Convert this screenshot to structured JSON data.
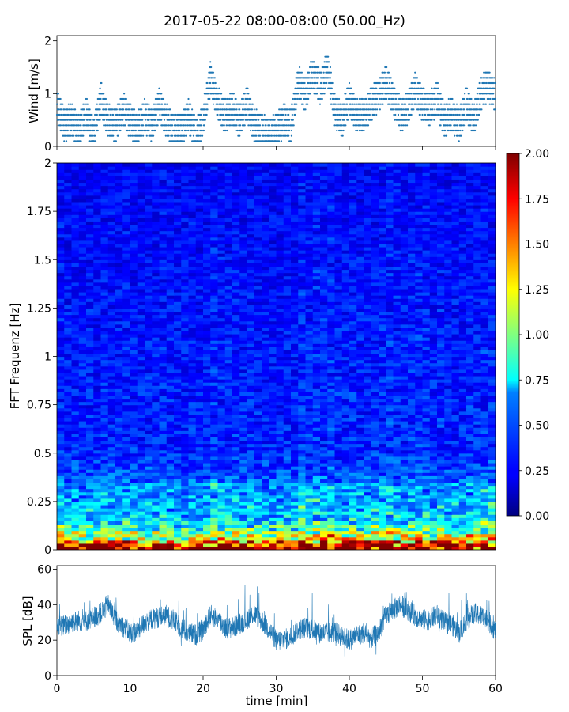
{
  "chart_data": [
    {
      "type": "scatter",
      "title": "2017-05-22 08:00-08:00 (50.00_Hz)",
      "xlabel": "",
      "ylabel": "Wind [m/s]",
      "xlim": [
        0,
        60
      ],
      "ylim": [
        0,
        2.1
      ],
      "yticks": [
        0,
        1,
        2
      ],
      "marker_color": "#1f77b4",
      "x": [
        0,
        1,
        2,
        3,
        4,
        5,
        6,
        7,
        8,
        9,
        10,
        11,
        12,
        13,
        14,
        15,
        16,
        17,
        18,
        19,
        20,
        21,
        22,
        23,
        24,
        25,
        26,
        27,
        28,
        29,
        30,
        31,
        32,
        33,
        34,
        35,
        36,
        37,
        38,
        39,
        40,
        41,
        42,
        43,
        44,
        45,
        46,
        47,
        48,
        49,
        50,
        51,
        52,
        53,
        54,
        55,
        56,
        57,
        58,
        59,
        60
      ],
      "y": [
        0.8,
        0.4,
        0.5,
        0.3,
        0.6,
        0.2,
        0.9,
        0.5,
        0.4,
        0.7,
        0.5,
        0.3,
        0.6,
        0.4,
        0.8,
        0.5,
        0.3,
        0.3,
        0.6,
        0.2,
        0.5,
        1.3,
        0.8,
        0.6,
        0.7,
        0.5,
        0.8,
        0.4,
        0.3,
        0.2,
        0.3,
        0.5,
        0.4,
        1.2,
        1.0,
        1.4,
        1.1,
        1.5,
        0.7,
        0.5,
        0.9,
        0.6,
        0.6,
        0.8,
        1.0,
        1.2,
        0.9,
        0.6,
        0.7,
        1.1,
        0.8,
        0.7,
        0.9,
        0.5,
        0.6,
        0.4,
        0.8,
        0.5,
        1.0,
        1.2,
        0.9
      ]
    },
    {
      "type": "heatmap",
      "xlabel": "",
      "ylabel": "FFT Frequenz [Hz]",
      "xlim": [
        0,
        60
      ],
      "ylim": [
        0,
        2
      ],
      "yticks": [
        0,
        0.25,
        0.5,
        0.75,
        1,
        1.25,
        1.5,
        1.75,
        2
      ],
      "colorbar": {
        "range": [
          0,
          2
        ],
        "ticks": [
          "0.00",
          "0.25",
          "0.50",
          "0.75",
          "1.00",
          "1.25",
          "1.50",
          "1.75",
          "2.00"
        ],
        "colormap": "jet"
      },
      "energy_profile": [
        {
          "freq": 0.0,
          "level": 2.0
        },
        {
          "freq": 0.05,
          "level": 1.1
        },
        {
          "freq": 0.15,
          "level": 0.55
        },
        {
          "freq": 0.5,
          "level": 0.3
        },
        {
          "freq": 2.0,
          "level": 0.22
        }
      ]
    },
    {
      "type": "line",
      "xlabel": "time [min]",
      "ylabel": "SPL [dB]",
      "xlim": [
        0,
        60
      ],
      "ylim": [
        0,
        62
      ],
      "xticks": [
        0,
        10,
        20,
        30,
        40,
        50,
        60
      ],
      "yticks": [
        0,
        20,
        40,
        60
      ],
      "line_color": "#1f77b4",
      "x": [
        0,
        1,
        2,
        3,
        4,
        5,
        6,
        7,
        8,
        9,
        10,
        11,
        12,
        13,
        14,
        15,
        16,
        17,
        18,
        19,
        20,
        21,
        22,
        23,
        24,
        25,
        26,
        27,
        28,
        29,
        30,
        31,
        32,
        33,
        34,
        35,
        36,
        37,
        38,
        39,
        40,
        41,
        42,
        43,
        44,
        45,
        46,
        47,
        48,
        49,
        50,
        51,
        52,
        53,
        54,
        55,
        56,
        57,
        58,
        59,
        60
      ],
      "y": [
        29,
        28,
        30,
        31,
        31,
        33,
        35,
        40,
        32,
        28,
        24,
        25,
        30,
        32,
        33,
        34,
        31,
        27,
        24,
        23,
        26,
        34,
        32,
        27,
        27,
        29,
        32,
        35,
        31,
        26,
        20,
        20,
        22,
        26,
        27,
        26,
        24,
        24,
        25,
        22,
        20,
        23,
        24,
        21,
        24,
        34,
        37,
        40,
        37,
        34,
        31,
        32,
        34,
        30,
        29,
        24,
        31,
        35,
        34,
        31,
        25
      ]
    }
  ]
}
